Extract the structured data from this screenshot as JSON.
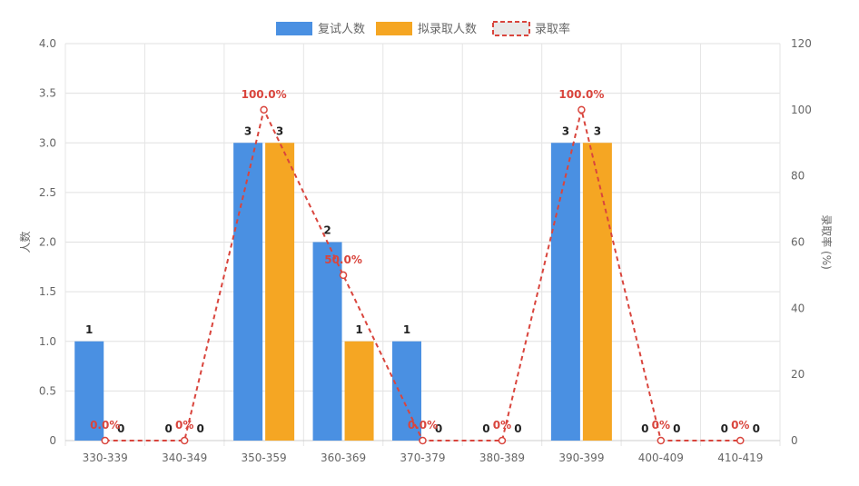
{
  "chart_data": {
    "type": "bar",
    "categories": [
      "330-339",
      "340-349",
      "350-359",
      "360-369",
      "370-379",
      "380-389",
      "390-399",
      "400-409",
      "410-419"
    ],
    "series": [
      {
        "name": "复试人数",
        "type": "bar",
        "axis": "left",
        "color": "#4a90e2",
        "values": [
          1,
          0,
          3,
          2,
          1,
          0,
          3,
          0,
          0
        ]
      },
      {
        "name": "拟录取人数",
        "type": "bar",
        "axis": "left",
        "color": "#f5a623",
        "values": [
          0,
          0,
          3,
          1,
          0,
          0,
          3,
          0,
          0
        ]
      },
      {
        "name": "录取率",
        "type": "line",
        "axis": "right",
        "color": "#d9453d",
        "line_style": "dashed",
        "values": [
          0,
          0,
          100,
          50,
          0,
          0,
          100,
          0,
          0
        ]
      }
    ],
    "bar_value_labels": [
      [
        "1",
        "0",
        "3",
        "2",
        "1",
        "0",
        "3",
        "0",
        "0"
      ],
      [
        "0",
        "0",
        "3",
        "1",
        "0",
        "0",
        "3",
        "0",
        "0"
      ]
    ],
    "rate_labels": [
      "0.0%",
      "0%",
      "100.0%",
      "50.0%",
      "0.0%",
      "0%",
      "100.0%",
      "0%",
      "0%"
    ],
    "ylabel_left": "人数",
    "ylabel_right": "录取率 (%)",
    "ylim_left": [
      0,
      4
    ],
    "yticks_left": [
      "0",
      "0.5",
      "1.0",
      "1.5",
      "2.0",
      "2.5",
      "3.0",
      "3.5",
      "4.0"
    ],
    "ylim_right": [
      0,
      120
    ],
    "yticks_right": [
      "0",
      "20",
      "40",
      "60",
      "80",
      "100",
      "120"
    ],
    "grid": true,
    "legend_position": "top-center"
  }
}
